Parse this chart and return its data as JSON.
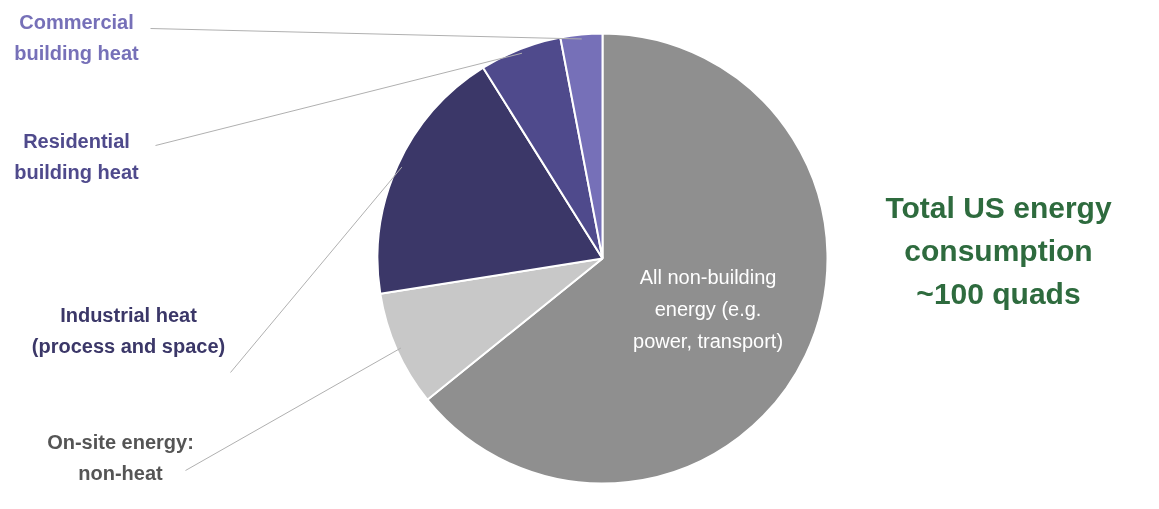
{
  "chart_data": {
    "type": "pie",
    "categories": [
      "All non-building\nenergy (e.g.\npower, transport)",
      "On-site energy:\nnon-heat",
      "Industrial heat\n(process and space)",
      "Residential\nbuilding heat",
      "Commercial\nbuilding heat"
    ],
    "values": [
      64.2,
      8.3,
      18.6,
      5.9,
      3.0
    ],
    "colors": [
      "#8f8f8f",
      "#c8c8c8",
      "#3b3768",
      "#4f4a8c",
      "#7670b8"
    ],
    "annotations": [
      "Total US energy\nconsumption\n~100 quads"
    ]
  }
}
